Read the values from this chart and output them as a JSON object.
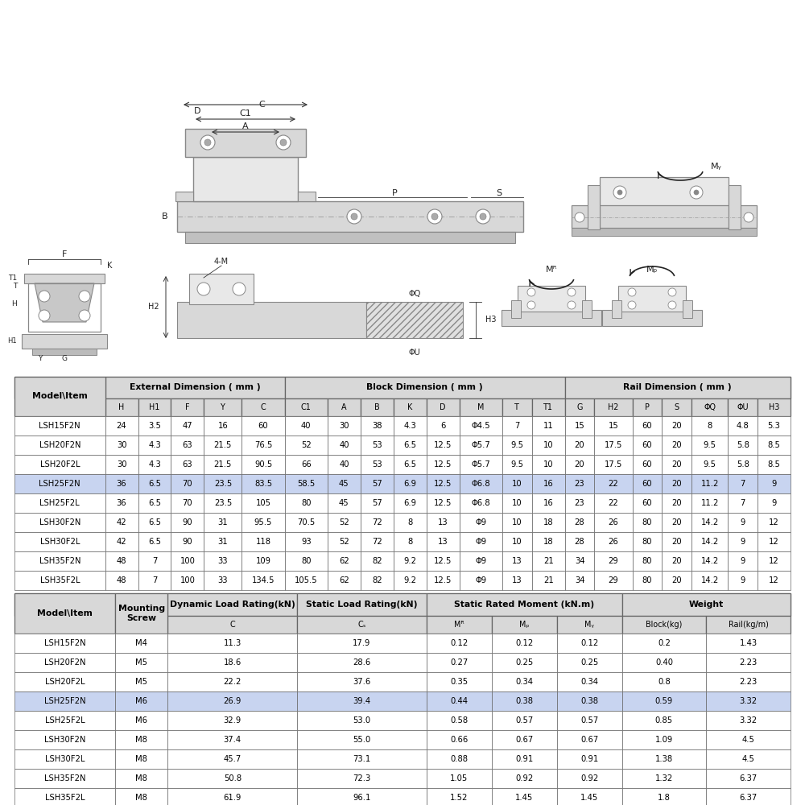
{
  "bg_color": "#ffffff",
  "table1_header_cols": [
    "Model\\\\Item",
    "H",
    "H1",
    "F",
    "Y",
    "C",
    "C1",
    "A",
    "B",
    "K",
    "D",
    "M",
    "T",
    "T1",
    "G",
    "H2",
    "P",
    "S",
    "ΦQ",
    "ΦU",
    "H3"
  ],
  "table1_rows": [
    [
      "LSH15F2N",
      "24",
      "3.5",
      "47",
      "16",
      "60",
      "40",
      "30",
      "38",
      "4.3",
      "6",
      "Φ4.5",
      "7",
      "11",
      "15",
      "15",
      "60",
      "20",
      "8",
      "4.8",
      "5.3"
    ],
    [
      "LSH20F2N",
      "30",
      "4.3",
      "63",
      "21.5",
      "76.5",
      "52",
      "40",
      "53",
      "6.5",
      "12.5",
      "Φ5.7",
      "9.5",
      "10",
      "20",
      "17.5",
      "60",
      "20",
      "9.5",
      "5.8",
      "8.5"
    ],
    [
      "LSH20F2L",
      "30",
      "4.3",
      "63",
      "21.5",
      "90.5",
      "66",
      "40",
      "53",
      "6.5",
      "12.5",
      "Φ5.7",
      "9.5",
      "10",
      "20",
      "17.5",
      "60",
      "20",
      "9.5",
      "5.8",
      "8.5"
    ],
    [
      "LSH25F2N",
      "36",
      "6.5",
      "70",
      "23.5",
      "83.5",
      "58.5",
      "45",
      "57",
      "6.9",
      "12.5",
      "Φ6.8",
      "10",
      "16",
      "23",
      "22",
      "60",
      "20",
      "11.2",
      "7",
      "9"
    ],
    [
      "LSH25F2L",
      "36",
      "6.5",
      "70",
      "23.5",
      "105",
      "80",
      "45",
      "57",
      "6.9",
      "12.5",
      "Φ6.8",
      "10",
      "16",
      "23",
      "22",
      "60",
      "20",
      "11.2",
      "7",
      "9"
    ],
    [
      "LSH30F2N",
      "42",
      "6.5",
      "90",
      "31",
      "95.5",
      "70.5",
      "52",
      "72",
      "8",
      "13",
      "Φ9",
      "10",
      "18",
      "28",
      "26",
      "80",
      "20",
      "14.2",
      "9",
      "12"
    ],
    [
      "LSH30F2L",
      "42",
      "6.5",
      "90",
      "31",
      "118",
      "93",
      "52",
      "72",
      "8",
      "13",
      "Φ9",
      "10",
      "18",
      "28",
      "26",
      "80",
      "20",
      "14.2",
      "9",
      "12"
    ],
    [
      "LSH35F2N",
      "48",
      "7",
      "100",
      "33",
      "109",
      "80",
      "62",
      "82",
      "9.2",
      "12.5",
      "Φ9",
      "13",
      "21",
      "34",
      "29",
      "80",
      "20",
      "14.2",
      "9",
      "12"
    ],
    [
      "LSH35F2L",
      "48",
      "7",
      "100",
      "33",
      "134.5",
      "105.5",
      "62",
      "82",
      "9.2",
      "12.5",
      "Φ9",
      "13",
      "21",
      "34",
      "29",
      "80",
      "20",
      "14.2",
      "9",
      "12"
    ]
  ],
  "table1_highlight_row": 3,
  "table2_rows": [
    [
      "LSH15F2N",
      "M4",
      "11.3",
      "17.9",
      "0.12",
      "0.12",
      "0.12",
      "0.2",
      "1.43"
    ],
    [
      "LSH20F2N",
      "M5",
      "18.6",
      "28.6",
      "0.27",
      "0.25",
      "0.25",
      "0.40",
      "2.23"
    ],
    [
      "LSH20F2L",
      "M5",
      "22.2",
      "37.6",
      "0.35",
      "0.34",
      "0.34",
      "0.8",
      "2.23"
    ],
    [
      "LSH25F2N",
      "M6",
      "26.9",
      "39.4",
      "0.44",
      "0.38",
      "0.38",
      "0.59",
      "3.32"
    ],
    [
      "LSH25F2L",
      "M6",
      "32.9",
      "53.0",
      "0.58",
      "0.57",
      "0.57",
      "0.85",
      "3.32"
    ],
    [
      "LSH30F2N",
      "M8",
      "37.4",
      "55.0",
      "0.66",
      "0.67",
      "0.67",
      "1.09",
      "4.5"
    ],
    [
      "LSH30F2L",
      "M8",
      "45.7",
      "73.1",
      "0.88",
      "0.91",
      "0.91",
      "1.38",
      "4.5"
    ],
    [
      "LSH35F2N",
      "M8",
      "50.8",
      "72.3",
      "1.05",
      "0.92",
      "0.92",
      "1.32",
      "6.37"
    ],
    [
      "LSH35F2L",
      "M8",
      "61.9",
      "96.1",
      "1.52",
      "1.45",
      "1.45",
      "1.8",
      "6.37"
    ]
  ],
  "table2_highlight_row": 3,
  "highlight_color": "#c8d4f0",
  "header_bg": "#d8d8d8",
  "border_color": "#666666",
  "text_color": "#000000",
  "font_size_table": 7.2,
  "font_size_header": 7.8,
  "diagram_color": "#888888",
  "diagram_fill": "#d8d8d8",
  "diagram_fill2": "#e8e8e8"
}
